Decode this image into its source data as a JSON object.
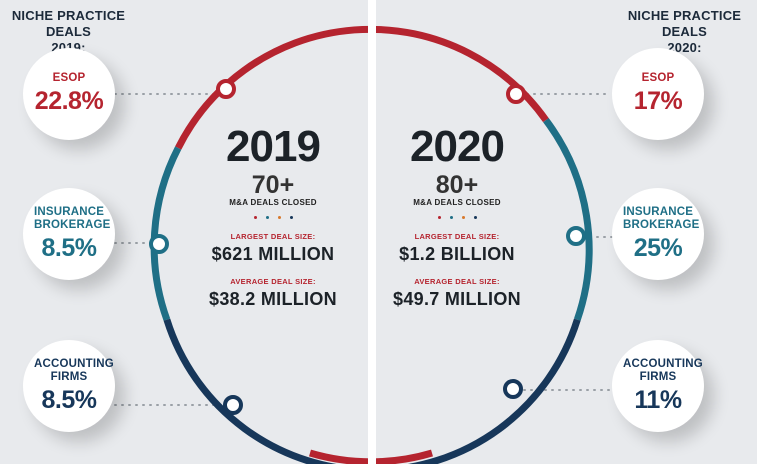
{
  "left": {
    "header": "NICHE PRACTICE DEALS\n2019:",
    "year": "2019",
    "count": "70+",
    "count_caption": "M&A DEALS CLOSED",
    "largest_label": "LARGEST DEAL SIZE:",
    "largest_value": "$621 MILLION",
    "average_label": "AVERAGE DEAL SIZE:",
    "average_value": "$38.2 MILLION",
    "bubbles": [
      {
        "label": "ESOP",
        "value": "22.8%"
      },
      {
        "label": "INSURANCE BROKERAGE",
        "value": "8.5%"
      },
      {
        "label": "ACCOUNTING FIRMS",
        "value": "8.5%"
      }
    ]
  },
  "right": {
    "header": "NICHE PRACTICE DEALS\n2020:",
    "year": "2020",
    "count": "80+",
    "count_caption": "M&A DEALS CLOSED",
    "largest_label": "LARGEST DEAL SIZE:",
    "largest_value": "$1.2 BILLION",
    "average_label": "AVERAGE DEAL SIZE:",
    "average_value": "$49.7 MILLION",
    "bubbles": [
      {
        "label": "ESOP",
        "value": "17%"
      },
      {
        "label": "INSURANCE BROKERAGE",
        "value": "25%"
      },
      {
        "label": "ACCOUNTING FIRMS",
        "value": "11%"
      }
    ]
  },
  "colors": {
    "red": "#b5242f",
    "teal": "#1f6f86",
    "navy": "#17375a",
    "orange": "#d8792c"
  }
}
